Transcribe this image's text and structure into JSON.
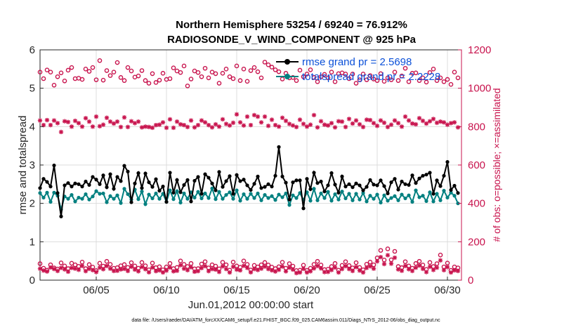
{
  "chart_data": {
    "type": "line",
    "title_line1": "Northern Hemisphere 53254 / 69240 = 76.912%",
    "title_line2": "RADIOSONDE_V_WIND_COMPONENT @ 925 hPa",
    "xlabel": "Jun.01,2012 00:00:00 start",
    "ylabel_left": "rmse and totalspread",
    "ylabel_right": "# of obs: o=possible; ×=assimilated",
    "footnote": "data file: /Users/raeder/DAI/ATM_forcXX/CAM6_setup/f.e21.FHIST_BGC.f09_025.CAM6assim.011/Diags_NTrS_2012-06/obs_diag_output.nc",
    "xlim": [
      1,
      31
    ],
    "ylim_left": [
      0,
      6
    ],
    "ylim_right": [
      0,
      1200
    ],
    "x_ticks": [
      5,
      10,
      15,
      20,
      25,
      30
    ],
    "x_tick_labels": [
      "06/05",
      "06/10",
      "06/15",
      "06/20",
      "06/25",
      "06/30"
    ],
    "y_left_ticks": [
      "0",
      "1",
      "2",
      "3",
      "4",
      "5",
      "6"
    ],
    "y_right_ticks": [
      "0",
      "200",
      "400",
      "600",
      "800",
      "1000",
      "1200"
    ],
    "grid": true,
    "legend": {
      "placement": "top-right",
      "entries": [
        "rmse grand pr = 2.5698",
        "totalspread grand pr = 2.2228"
      ]
    },
    "colors": {
      "rmse": "#000000",
      "totalspread": "#008080",
      "obs": "#c8134d",
      "legend_text": "#0b50d8",
      "grid": "#dcdcdc"
    },
    "x": [
      1.0,
      1.25,
      1.5,
      1.75,
      2.0,
      2.25,
      2.5,
      2.75,
      3.0,
      3.25,
      3.5,
      3.75,
      4.0,
      4.25,
      4.5,
      4.75,
      5.0,
      5.25,
      5.5,
      5.75,
      6.0,
      6.25,
      6.5,
      6.75,
      7.0,
      7.25,
      7.5,
      7.75,
      8.0,
      8.25,
      8.5,
      8.75,
      9.0,
      9.25,
      9.5,
      9.75,
      10.0,
      10.25,
      10.5,
      10.75,
      11.0,
      11.25,
      11.5,
      11.75,
      12.0,
      12.25,
      12.5,
      12.75,
      13.0,
      13.25,
      13.5,
      13.75,
      14.0,
      14.25,
      14.5,
      14.75,
      15.0,
      15.25,
      15.5,
      15.75,
      16.0,
      16.25,
      16.5,
      16.75,
      17.0,
      17.25,
      17.5,
      17.75,
      18.0,
      18.25,
      18.5,
      18.75,
      19.0,
      19.25,
      19.5,
      19.75,
      20.0,
      20.25,
      20.5,
      20.75,
      21.0,
      21.25,
      21.5,
      21.75,
      22.0,
      22.25,
      22.5,
      22.75,
      23.0,
      23.25,
      23.5,
      23.75,
      24.0,
      24.25,
      24.5,
      24.75,
      25.0,
      25.25,
      25.5,
      25.75,
      26.0,
      26.25,
      26.5,
      26.75,
      27.0,
      27.25,
      27.5,
      27.75,
      28.0,
      28.25,
      28.5,
      28.75,
      29.0,
      29.25,
      29.5,
      29.75,
      30.0,
      30.25,
      30.5,
      30.75
    ],
    "series": [
      {
        "name": "rmse",
        "axis": "left",
        "values": [
          2.4,
          2.64,
          2.56,
          2.44,
          2.99,
          2.27,
          1.66,
          2.47,
          2.53,
          2.44,
          2.52,
          2.5,
          2.44,
          2.57,
          2.48,
          2.69,
          2.62,
          2.5,
          2.73,
          2.42,
          2.76,
          2.38,
          2.69,
          2.58,
          2.98,
          2.83,
          2.03,
          2.52,
          2.79,
          2.4,
          2.78,
          2.55,
          2.43,
          2.63,
          2.33,
          2.44,
          2.04,
          2.8,
          2.28,
          2.61,
          2.29,
          2.48,
          2.61,
          2.05,
          2.59,
          2.69,
          2.25,
          2.76,
          2.67,
          2.52,
          2.34,
          2.82,
          2.43,
          2.58,
          2.71,
          2.25,
          2.74,
          2.58,
          2.62,
          2.47,
          2.35,
          2.51,
          2.7,
          2.4,
          2.43,
          2.5,
          2.44,
          2.72,
          3.47,
          2.7,
          2.54,
          2.1,
          2.55,
          2.6,
          2.6,
          1.87,
          2.64,
          2.37,
          2.8,
          2.53,
          2.57,
          2.31,
          2.47,
          2.79,
          2.49,
          2.28,
          2.7,
          2.44,
          2.5,
          2.42,
          2.52,
          2.47,
          2.34,
          2.43,
          2.61,
          2.49,
          2.47,
          2.6,
          2.45,
          2.26,
          2.55,
          2.64,
          2.36,
          2.57,
          2.5,
          2.48,
          2.73,
          2.53,
          2.65,
          2.72,
          2.75,
          2.8,
          2.25,
          2.6,
          2.45,
          2.72,
          3.08,
          2.35,
          2.46,
          2.27
        ]
      },
      {
        "name": "totalspread",
        "axis": "left",
        "values": [
          2.27,
          2.15,
          2.28,
          2.04,
          2.28,
          2.2,
          1.84,
          2.18,
          2.12,
          2.22,
          2.05,
          2.15,
          2.12,
          2.24,
          2.1,
          2.18,
          2.32,
          2.25,
          2.26,
          2.03,
          2.19,
          2.12,
          2.21,
          2.01,
          2.38,
          2.24,
          2.1,
          2.36,
          2.11,
          2.31,
          1.98,
          2.23,
          2.13,
          2.26,
          2.12,
          2.25,
          2.04,
          2.34,
          2.11,
          2.32,
          2.02,
          2.26,
          2.12,
          2.29,
          2.15,
          2.3,
          2.13,
          2.26,
          2.14,
          2.39,
          2.11,
          2.3,
          2.12,
          2.22,
          2.29,
          2.12,
          2.34,
          2.07,
          2.24,
          2.12,
          2.25,
          2.14,
          2.26,
          2.08,
          2.22,
          2.14,
          2.19,
          2.09,
          2.23,
          2.16,
          2.26,
          1.96,
          2.21,
          2.14,
          2.27,
          2.09,
          2.29,
          2.07,
          2.38,
          2.08,
          2.26,
          2.14,
          2.3,
          2.07,
          2.24,
          2.1,
          2.31,
          2.13,
          2.25,
          2.08,
          2.25,
          2.1,
          2.27,
          2.05,
          2.2,
          2.12,
          2.23,
          2.02,
          2.21,
          2.07,
          2.14,
          2.19,
          2.08,
          2.23,
          2.13,
          2.21,
          2.04,
          2.34,
          2.16,
          2.2,
          2.06,
          2.29,
          2.05,
          2.25,
          2.08,
          2.33,
          2.15,
          2.28,
          2.2,
          2.0
        ]
      },
      {
        "name": "obs possible",
        "axis": "right",
        "marker": "o",
        "values": [
          86,
          62,
          52,
          80,
          64,
          58,
          90,
          74,
          60,
          88,
          80,
          72,
          94,
          60,
          81,
          68,
          50,
          88,
          73,
          98,
          82,
          62,
          65,
          75,
          81,
          66,
          91,
          74,
          62,
          92,
          75,
          54,
          89,
          65,
          70,
          54,
          69,
          87,
          60,
          66,
          100,
          82,
          71,
          87,
          59,
          60,
          84,
          96,
          64,
          80,
          73,
          59,
          93,
          80,
          52,
          94,
          74,
          67,
          100,
          82,
          53,
          77,
          69,
          80,
          92,
          79,
          68,
          60,
          70,
          93,
          62,
          86,
          73,
          50,
          52,
          78,
          51,
          62,
          82,
          98,
          79,
          55,
          57,
          71,
          87,
          52,
          77,
          96,
          76,
          64,
          91,
          66,
          54,
          83,
          94,
          80,
          116,
          155,
          105,
          163,
          106,
          150,
          71,
          65,
          96,
          74,
          62,
          87,
          98,
          79,
          56,
          92,
          71,
          86,
          131,
          69,
          89,
          51,
          69,
          64
        ]
      },
      {
        "name": "obs assimilated",
        "axis": "right",
        "marker": "x",
        "values": [
          60,
          50,
          45,
          66,
          58,
          48,
          64,
          56,
          44,
          64,
          60,
          54,
          74,
          47,
          59,
          52,
          42,
          65,
          57,
          74,
          60,
          48,
          49,
          56,
          59,
          48,
          70,
          55,
          46,
          69,
          57,
          41,
          66,
          47,
          51,
          40,
          50,
          66,
          46,
          49,
          78,
          60,
          52,
          67,
          44,
          47,
          63,
          73,
          47,
          58,
          55,
          43,
          72,
          58,
          40,
          70,
          55,
          51,
          75,
          64,
          41,
          58,
          53,
          60,
          71,
          58,
          51,
          45,
          54,
          71,
          46,
          65,
          55,
          37,
          40,
          59,
          40,
          46,
          61,
          74,
          61,
          42,
          43,
          53,
          66,
          40,
          58,
          73,
          58,
          48,
          68,
          50,
          40,
          64,
          72,
          60,
          98,
          120,
          84,
          130,
          86,
          117,
          56,
          49,
          74,
          57,
          48,
          65,
          76,
          59,
          42,
          70,
          53,
          65,
          103,
          52,
          68,
          40,
          51,
          48
        ]
      },
      {
        "name": "obs possible (upper)",
        "axis": "right",
        "marker": "o",
        "values": [
          1084,
          1050,
          1095,
          1084,
          1016,
          1060,
          1080,
          1038,
          1094,
          1108,
          1050,
          1052,
          1046,
          1100,
          1088,
          1108,
          1044,
          1144,
          1042,
          1092,
          1066,
          1084,
          1134,
          1056,
          1040,
          1108,
          1090,
          1058,
          1064,
          1092,
          1040,
          1026,
          1076,
          1030,
          1042,
          1078,
          1046,
          1050,
          1106,
          1090,
          1082,
          1116,
          1012,
          1048,
          1090,
          1082,
          1060,
          1104,
          1054,
          1084,
          1076,
          1026,
          1078,
          1100,
          1060,
          1050,
          1116,
          1040,
          1100,
          1036,
          1092,
          1108,
          1086,
          1054,
          1136,
          1122,
          1110,
          1096,
          1086,
          1048,
          1078,
          1054,
          1056,
          1040,
          1094,
          1060,
          1074,
          1096,
          1056,
          1034,
          1060,
          1072,
          1054,
          1084,
          1034,
          1076,
          1080,
          1074,
          1050,
          1074,
          1026,
          1044,
          1074,
          1044,
          1066,
          1048,
          1040,
          1076,
          1036,
          1054,
          1044,
          1084,
          1040,
          1064,
          1104,
          1034,
          1078,
          1080,
          1040,
          1054,
          1032,
          1082,
          1100,
          1040,
          1054,
          1034,
          1046,
          1020,
          1084,
          1054
        ]
      },
      {
        "name": "obs assimilated (upper)",
        "axis": "right",
        "marker": "x",
        "values": [
          832,
          808,
          834,
          808,
          832,
          818,
          772,
          828,
          824,
          800,
          830,
          818,
          800,
          844,
          826,
          800,
          852,
          802,
          810,
          846,
          826,
          816,
          826,
          798,
          848,
          798,
          828,
          818,
          826,
          796,
          800,
          798,
          794,
          808,
          810,
          822,
          794,
          838,
          794,
          826,
          812,
          808,
          798,
          832,
          796,
          808,
          832,
          822,
          808,
          796,
          812,
          800,
          838,
          814,
          806,
          820,
          864,
          822,
          806,
          852,
          808,
          860,
          852,
          822,
          852,
          804,
          836,
          808,
          800,
          846,
          830,
          814,
          806,
          798,
          836,
          814,
          800,
          810,
          860,
          796,
          828,
          810,
          806,
          818,
          796,
          828,
          826,
          798,
          840,
          816,
          832,
          812,
          798,
          836,
          834,
          818,
          804,
          832,
          820,
          798,
          810,
          832,
          818,
          800,
          852,
          832,
          816,
          812,
          844,
          830,
          816,
          828,
          840,
          820,
          826,
          822,
          810,
          818,
          822,
          796
        ]
      }
    ]
  }
}
